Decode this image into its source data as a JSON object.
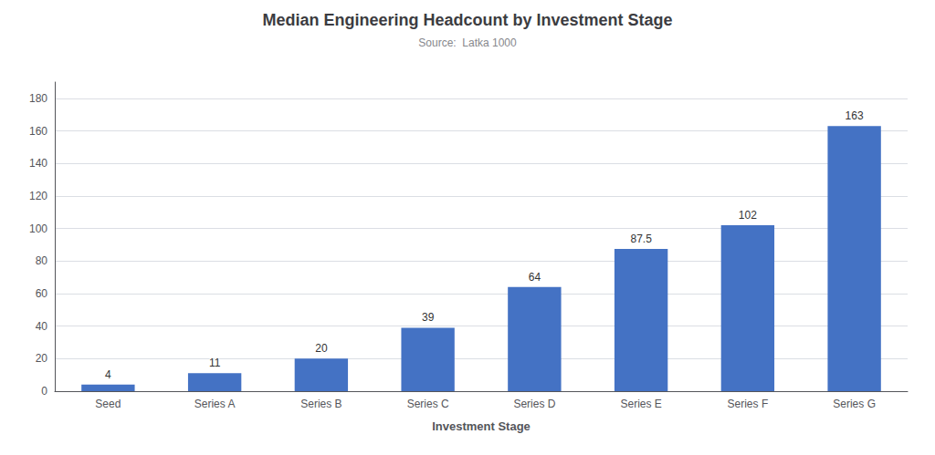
{
  "chart_data": {
    "type": "bar",
    "title": "Median Engineering Headcount by Investment Stage",
    "subtitle": "Source:  Latka 1000",
    "xlabel": "Investment Stage",
    "categories": [
      "Seed",
      "Series A",
      "Series B",
      "Series C",
      "Series D",
      "Series E",
      "Series F",
      "Series G"
    ],
    "values": [
      4,
      11,
      20,
      39,
      64,
      87.5,
      102,
      163
    ],
    "color": "#4472C4",
    "ylim": [
      0,
      190
    ],
    "yticks": [
      0,
      20,
      40,
      60,
      80,
      100,
      120,
      140,
      160,
      180
    ],
    "grid": true,
    "data_labels": true
  }
}
